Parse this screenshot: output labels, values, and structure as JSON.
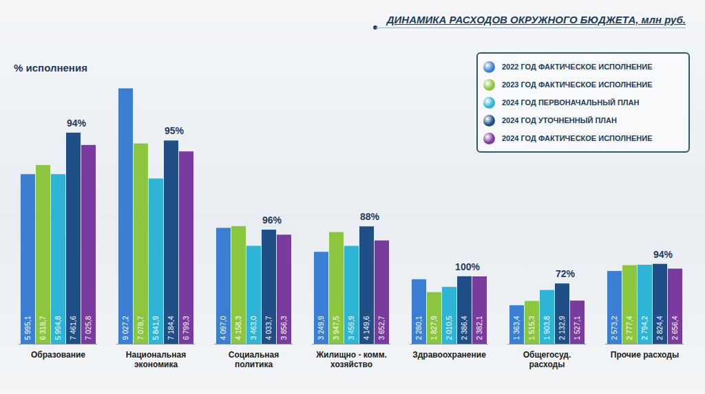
{
  "chart_data": {
    "type": "bar",
    "title": "ДИНАМИКА РАСХОДОВ ОКРУЖНОГО БЮДЖЕТА, млн руб.",
    "subtitle": "% исполнения",
    "categories": [
      "Образование",
      "Национальная экономика",
      "Социальная политика",
      "Жилищно - комм. хозяйство",
      "Здравоохранение",
      "Общегосуд. расходы",
      "Прочие расходы"
    ],
    "series": [
      {
        "name": "2022 ГОД ФАКТИЧЕСКОЕ ИСПОЛНЕНИЕ",
        "color": "#3b7fd4",
        "values": [
          5995.1,
          9027.2,
          4097.0,
          3249.9,
          2280.1,
          1363.4,
          2573.2
        ],
        "value_labels": [
          "5 995,1",
          "9 027,2",
          "4 097,0",
          "3 249,9",
          "2 280,1",
          "1 363,4",
          "2 573,2"
        ]
      },
      {
        "name": "2023 ГОД ФАКТИЧЕСКОЕ ИСПОЛНЕНИЕ",
        "color": "#8cc63e",
        "values": [
          6318.7,
          7078.7,
          4158.3,
          3947.5,
          1827.9,
          1515.3,
          2777.4
        ],
        "value_labels": [
          "6 318,7",
          "7 078,7",
          "4 158,3",
          "3 947,5",
          "1 827,9",
          "1 515,3",
          "2 777,4"
        ]
      },
      {
        "name": "2024 ГОД ПЕРВОНАЧАЛЬНЫЙ ПЛАН",
        "color": "#2db4d6",
        "values": [
          5994.8,
          5841.9,
          3463.0,
          3459.9,
          2010.5,
          1903.8,
          2794.2
        ],
        "value_labels": [
          "5 994,8",
          "5 841,9",
          "3 463,0",
          "3 459,9",
          "2 010,5",
          "1 903,8",
          "2 794,2"
        ]
      },
      {
        "name": "2024 ГОД УТОЧНЕННЫЙ ПЛАН",
        "color": "#1f4f86",
        "values": [
          7461.6,
          7184.4,
          4033.7,
          4149.6,
          2386.4,
          2132.9,
          2824.4
        ],
        "value_labels": [
          "7 461,6",
          "7 184,4",
          "4 033,7",
          "4 149,6",
          "2 386,4",
          "2 132,9",
          "2 824,4"
        ]
      },
      {
        "name": "2024 ГОД ФАКТИЧЕСКОЕ ИСПОЛНЕНИЕ",
        "color": "#7a3b9e",
        "values": [
          7025.8,
          6799.3,
          3856.3,
          3652.7,
          2382.1,
          1527.1,
          2656.4
        ],
        "value_labels": [
          "7 025,8",
          "6 799,3",
          "3 856,3",
          "3 652,7",
          "2 382,1",
          "1 527,1",
          "2 656,4"
        ]
      }
    ],
    "annotations": [
      {
        "category": "Образование",
        "value": 94,
        "label": "94%"
      },
      {
        "category": "Национальная экономика",
        "value": 95,
        "label": "95%"
      },
      {
        "category": "Социальная политика",
        "value": 96,
        "label": "96%"
      },
      {
        "category": "Жилищно - комм. хозяйство",
        "value": 88,
        "label": "88%"
      },
      {
        "category": "Здравоохранение",
        "value": 100,
        "label": "100%"
      },
      {
        "category": "Общегосуд. расходы",
        "value": 72,
        "label": "72%"
      },
      {
        "category": "Прочие расходы",
        "value": 94,
        "label": "94%"
      }
    ],
    "ylim": [
      0,
      9500
    ],
    "data_labels": true,
    "tick_labels": "x",
    "legend": "top-right",
    "grid": false
  }
}
